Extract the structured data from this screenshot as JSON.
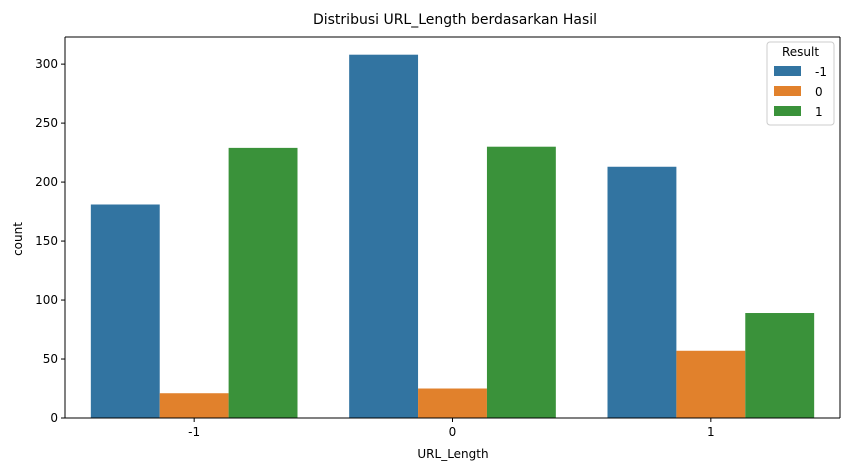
{
  "chart_data": {
    "type": "bar",
    "title": "Distribusi URL_Length berdasarkan Hasil",
    "xlabel": "URL_Length",
    "ylabel": "count",
    "categories": [
      "-1",
      "0",
      "1"
    ],
    "series": [
      {
        "name": "-1",
        "color": "#3274a1",
        "values": [
          181,
          308,
          213
        ]
      },
      {
        "name": "0",
        "color": "#e1812c",
        "values": [
          21,
          25,
          57
        ]
      },
      {
        "name": "1",
        "color": "#3a923a",
        "values": [
          229,
          230,
          89
        ]
      }
    ],
    "ylim": [
      0,
      323
    ],
    "yticks": [
      0,
      50,
      100,
      150,
      200,
      250,
      300
    ],
    "grid": false,
    "legend": {
      "title": "Result",
      "position": "top-right"
    }
  }
}
